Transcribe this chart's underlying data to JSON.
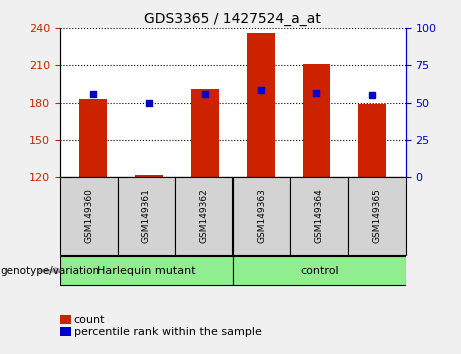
{
  "title": "GDS3365 / 1427524_a_at",
  "samples": [
    "GSM149360",
    "GSM149361",
    "GSM149362",
    "GSM149363",
    "GSM149364",
    "GSM149365"
  ],
  "red_values": [
    183,
    122,
    191,
    236,
    211,
    179
  ],
  "blue_values": [
    187,
    180,
    187,
    190,
    188,
    186
  ],
  "ylim_left": [
    120,
    240
  ],
  "yticks_left": [
    120,
    150,
    180,
    210,
    240
  ],
  "ylim_right": [
    0,
    100
  ],
  "yticks_right": [
    0,
    25,
    50,
    75,
    100
  ],
  "group_split": 3,
  "group_labels": [
    "Harlequin mutant",
    "control"
  ],
  "group_label_text": "genotype/variation",
  "group_color": "#90EE90",
  "bar_color": "#CC2200",
  "dot_color": "#0000CC",
  "left_axis_color": "#CC2200",
  "right_axis_color": "#0000CC",
  "bg_color": "#f0f0f0",
  "plot_bg": "#ffffff",
  "tick_bg": "#d3d3d3",
  "bar_width": 0.5,
  "bar_bottom": 120
}
